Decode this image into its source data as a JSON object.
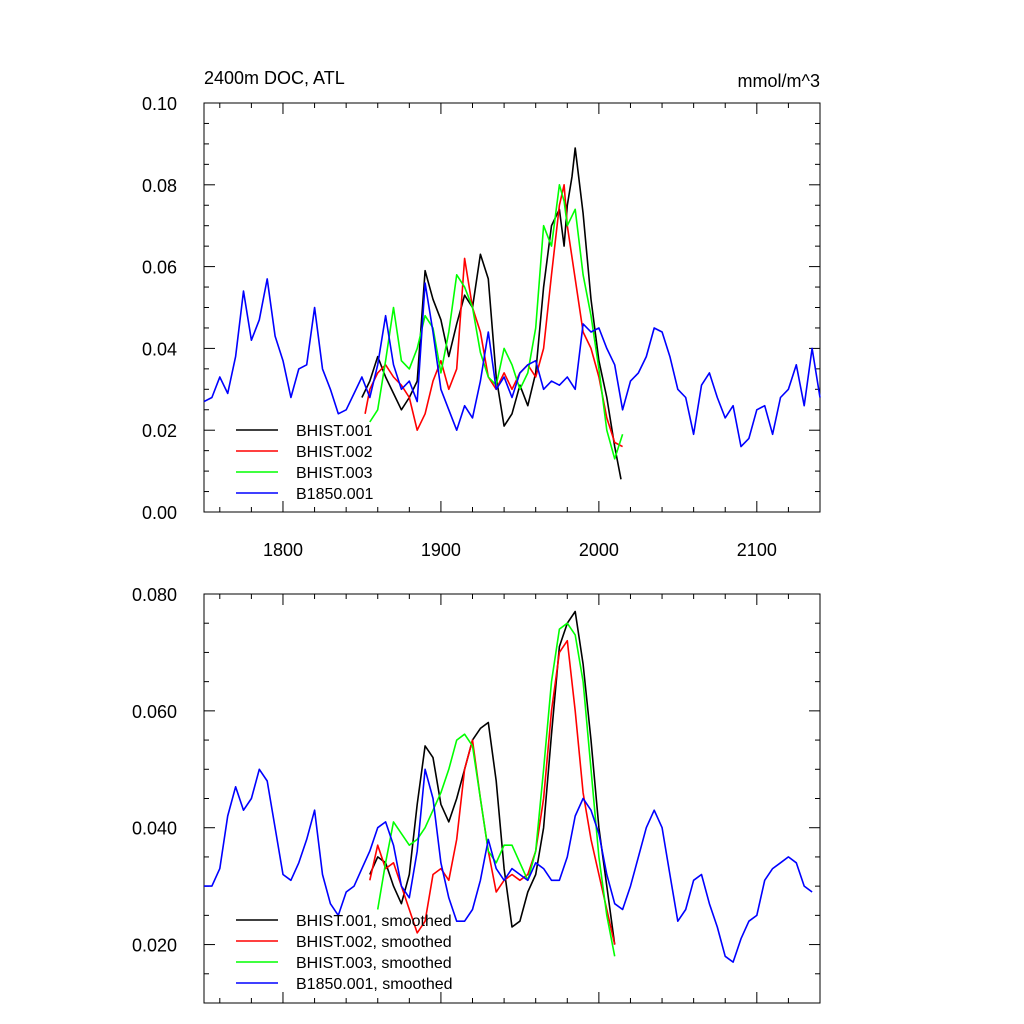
{
  "chart_data": [
    {
      "type": "line",
      "title": "2400m DOC, ATL",
      "units": "mmol/m^3",
      "xlim": [
        1750,
        2140
      ],
      "ylim": [
        0.0,
        0.1
      ],
      "xticks": [
        1800,
        1900,
        2000,
        2100
      ],
      "xtick_labels": [
        "1800",
        "1900",
        "2000",
        "2100"
      ],
      "yticks": [
        0.0,
        0.02,
        0.04,
        0.06,
        0.08,
        0.1
      ],
      "ytick_labels": [
        "0.00",
        "0.02",
        "0.04",
        "0.06",
        "0.08",
        "0.10"
      ],
      "legend": [
        "BHIST.001",
        "BHIST.002",
        "BHIST.003",
        "B1850.001"
      ],
      "legend_position": "bottom-left",
      "series": [
        {
          "name": "BHIST.001",
          "color": "#000000",
          "x": [
            1850,
            1855,
            1860,
            1865,
            1870,
            1875,
            1880,
            1885,
            1890,
            1895,
            1900,
            1905,
            1910,
            1915,
            1920,
            1925,
            1930,
            1935,
            1940,
            1945,
            1950,
            1955,
            1960,
            1965,
            1970,
            1975,
            1978,
            1980,
            1983,
            1985,
            1990,
            1995,
            2000,
            2005,
            2010,
            2014
          ],
          "y": [
            0.028,
            0.032,
            0.038,
            0.033,
            0.029,
            0.025,
            0.028,
            0.032,
            0.059,
            0.052,
            0.047,
            0.038,
            0.046,
            0.053,
            0.05,
            0.063,
            0.057,
            0.033,
            0.021,
            0.024,
            0.031,
            0.026,
            0.034,
            0.055,
            0.07,
            0.074,
            0.065,
            0.075,
            0.082,
            0.089,
            0.073,
            0.052,
            0.037,
            0.028,
            0.016,
            0.008
          ]
        },
        {
          "name": "BHIST.002",
          "color": "#ff0000",
          "x": [
            1852,
            1855,
            1860,
            1865,
            1870,
            1875,
            1880,
            1885,
            1890,
            1895,
            1900,
            1905,
            1910,
            1915,
            1920,
            1925,
            1930,
            1935,
            1940,
            1945,
            1950,
            1955,
            1960,
            1965,
            1970,
            1975,
            1978,
            1980,
            1985,
            1990,
            1995,
            2000,
            2005,
            2010,
            2015
          ],
          "y": [
            0.024,
            0.03,
            0.034,
            0.036,
            0.033,
            0.031,
            0.028,
            0.02,
            0.024,
            0.032,
            0.037,
            0.03,
            0.035,
            0.062,
            0.05,
            0.044,
            0.033,
            0.03,
            0.034,
            0.03,
            0.034,
            0.036,
            0.033,
            0.04,
            0.058,
            0.075,
            0.08,
            0.07,
            0.057,
            0.044,
            0.04,
            0.033,
            0.023,
            0.017,
            0.016
          ]
        },
        {
          "name": "BHIST.003",
          "color": "#00ff00",
          "x": [
            1855,
            1860,
            1865,
            1870,
            1875,
            1880,
            1885,
            1890,
            1895,
            1900,
            1905,
            1910,
            1915,
            1920,
            1925,
            1930,
            1935,
            1940,
            1945,
            1950,
            1955,
            1960,
            1965,
            1970,
            1975,
            1978,
            1980,
            1985,
            1990,
            1995,
            2000,
            2005,
            2010,
            2015
          ],
          "y": [
            0.022,
            0.025,
            0.037,
            0.05,
            0.037,
            0.035,
            0.04,
            0.048,
            0.045,
            0.034,
            0.044,
            0.058,
            0.055,
            0.05,
            0.039,
            0.033,
            0.031,
            0.04,
            0.036,
            0.03,
            0.034,
            0.045,
            0.07,
            0.065,
            0.08,
            0.076,
            0.07,
            0.074,
            0.058,
            0.048,
            0.035,
            0.02,
            0.013,
            0.019
          ]
        },
        {
          "name": "B1850.001",
          "color": "#0000ff",
          "x": [
            1750,
            1755,
            1760,
            1765,
            1770,
            1775,
            1780,
            1785,
            1790,
            1795,
            1800,
            1805,
            1810,
            1815,
            1820,
            1825,
            1830,
            1835,
            1840,
            1845,
            1850,
            1855,
            1860,
            1865,
            1870,
            1875,
            1880,
            1885,
            1890,
            1895,
            1900,
            1905,
            1910,
            1915,
            1920,
            1925,
            1930,
            1935,
            1940,
            1945,
            1950,
            1955,
            1960,
            1965,
            1970,
            1975,
            1980,
            1985,
            1990,
            1995,
            2000,
            2005,
            2010,
            2015,
            2020,
            2025,
            2030,
            2035,
            2040,
            2045,
            2050,
            2055,
            2060,
            2065,
            2070,
            2075,
            2080,
            2085,
            2090,
            2095,
            2100,
            2105,
            2110,
            2115,
            2120,
            2125,
            2130,
            2135,
            2140
          ],
          "y": [
            0.027,
            0.028,
            0.033,
            0.029,
            0.038,
            0.054,
            0.042,
            0.047,
            0.057,
            0.043,
            0.037,
            0.028,
            0.035,
            0.036,
            0.05,
            0.035,
            0.03,
            0.024,
            0.025,
            0.029,
            0.033,
            0.028,
            0.036,
            0.048,
            0.036,
            0.03,
            0.032,
            0.027,
            0.056,
            0.044,
            0.03,
            0.025,
            0.02,
            0.026,
            0.023,
            0.032,
            0.044,
            0.03,
            0.033,
            0.028,
            0.034,
            0.036,
            0.037,
            0.03,
            0.032,
            0.031,
            0.033,
            0.03,
            0.046,
            0.044,
            0.045,
            0.04,
            0.036,
            0.025,
            0.032,
            0.034,
            0.038,
            0.045,
            0.044,
            0.038,
            0.03,
            0.028,
            0.019,
            0.031,
            0.034,
            0.028,
            0.023,
            0.026,
            0.016,
            0.018,
            0.025,
            0.026,
            0.019,
            0.028,
            0.03,
            0.036,
            0.026,
            0.04,
            0.028
          ]
        }
      ]
    },
    {
      "type": "line",
      "xlim": [
        1750,
        2140
      ],
      "ylim": [
        0.01,
        0.08
      ],
      "xticks": [
        1800,
        1900,
        2000,
        2100
      ],
      "yticks": [
        0.02,
        0.04,
        0.06,
        0.08
      ],
      "ytick_labels": [
        "0.020",
        "0.040",
        "0.060",
        "0.080"
      ],
      "legend": [
        "BHIST.001, smoothed",
        "BHIST.002, smoothed",
        "BHIST.003, smoothed",
        "B1850.001, smoothed"
      ],
      "legend_position": "bottom-left",
      "series": [
        {
          "name": "BHIST.001, smoothed",
          "color": "#000000",
          "x": [
            1855,
            1860,
            1865,
            1870,
            1875,
            1880,
            1885,
            1890,
            1895,
            1900,
            1905,
            1910,
            1915,
            1920,
            1925,
            1930,
            1935,
            1940,
            1945,
            1950,
            1955,
            1960,
            1965,
            1970,
            1975,
            1980,
            1985,
            1990,
            1995,
            2000,
            2005,
            2010
          ],
          "y": [
            0.032,
            0.035,
            0.034,
            0.03,
            0.027,
            0.032,
            0.044,
            0.054,
            0.052,
            0.044,
            0.041,
            0.045,
            0.05,
            0.055,
            0.057,
            0.058,
            0.048,
            0.033,
            0.023,
            0.024,
            0.029,
            0.032,
            0.04,
            0.056,
            0.071,
            0.075,
            0.077,
            0.068,
            0.055,
            0.04,
            0.03,
            0.02
          ]
        },
        {
          "name": "BHIST.002, smoothed",
          "color": "#ff0000",
          "x": [
            1855,
            1860,
            1865,
            1870,
            1875,
            1880,
            1885,
            1890,
            1895,
            1900,
            1905,
            1910,
            1915,
            1920,
            1925,
            1930,
            1935,
            1940,
            1945,
            1950,
            1955,
            1960,
            1965,
            1970,
            1975,
            1980,
            1985,
            1990,
            1995,
            2000,
            2005,
            2010
          ],
          "y": [
            0.031,
            0.037,
            0.033,
            0.034,
            0.03,
            0.026,
            0.022,
            0.024,
            0.032,
            0.033,
            0.031,
            0.038,
            0.05,
            0.055,
            0.045,
            0.036,
            0.029,
            0.031,
            0.032,
            0.031,
            0.032,
            0.036,
            0.045,
            0.06,
            0.07,
            0.072,
            0.06,
            0.046,
            0.038,
            0.032,
            0.026,
            0.02
          ]
        },
        {
          "name": "BHIST.003, smoothed",
          "color": "#00ff00",
          "x": [
            1860,
            1865,
            1870,
            1875,
            1880,
            1885,
            1890,
            1895,
            1900,
            1905,
            1910,
            1915,
            1920,
            1925,
            1930,
            1935,
            1940,
            1945,
            1950,
            1955,
            1960,
            1965,
            1970,
            1975,
            1980,
            1985,
            1990,
            1995,
            2000,
            2005,
            2010
          ],
          "y": [
            0.026,
            0.034,
            0.041,
            0.039,
            0.037,
            0.038,
            0.04,
            0.043,
            0.046,
            0.05,
            0.055,
            0.056,
            0.054,
            0.045,
            0.036,
            0.034,
            0.037,
            0.037,
            0.034,
            0.031,
            0.036,
            0.05,
            0.065,
            0.074,
            0.075,
            0.073,
            0.065,
            0.05,
            0.035,
            0.025,
            0.018
          ]
        },
        {
          "name": "B1850.001, smoothed",
          "color": "#0000ff",
          "x": [
            1750,
            1755,
            1760,
            1765,
            1770,
            1775,
            1780,
            1785,
            1790,
            1795,
            1800,
            1805,
            1810,
            1815,
            1820,
            1825,
            1830,
            1835,
            1840,
            1845,
            1850,
            1855,
            1860,
            1865,
            1870,
            1875,
            1880,
            1885,
            1890,
            1895,
            1900,
            1905,
            1910,
            1915,
            1920,
            1925,
            1930,
            1935,
            1940,
            1945,
            1950,
            1955,
            1960,
            1965,
            1970,
            1975,
            1980,
            1985,
            1990,
            1995,
            2000,
            2005,
            2010,
            2015,
            2020,
            2025,
            2030,
            2035,
            2040,
            2045,
            2050,
            2055,
            2060,
            2065,
            2070,
            2075,
            2080,
            2085,
            2090,
            2095,
            2100,
            2105,
            2110,
            2115,
            2120,
            2125,
            2130,
            2135
          ],
          "y": [
            0.03,
            0.03,
            0.033,
            0.042,
            0.047,
            0.043,
            0.045,
            0.05,
            0.048,
            0.04,
            0.032,
            0.031,
            0.034,
            0.038,
            0.043,
            0.032,
            0.027,
            0.025,
            0.029,
            0.03,
            0.033,
            0.036,
            0.04,
            0.041,
            0.037,
            0.03,
            0.028,
            0.036,
            0.05,
            0.045,
            0.034,
            0.028,
            0.024,
            0.024,
            0.026,
            0.031,
            0.038,
            0.033,
            0.031,
            0.033,
            0.032,
            0.031,
            0.034,
            0.033,
            0.031,
            0.031,
            0.035,
            0.042,
            0.045,
            0.043,
            0.039,
            0.032,
            0.027,
            0.026,
            0.03,
            0.035,
            0.04,
            0.043,
            0.04,
            0.032,
            0.024,
            0.026,
            0.031,
            0.032,
            0.027,
            0.023,
            0.018,
            0.017,
            0.021,
            0.024,
            0.025,
            0.031,
            0.033,
            0.034,
            0.035,
            0.034,
            0.03,
            0.029
          ]
        }
      ]
    }
  ]
}
